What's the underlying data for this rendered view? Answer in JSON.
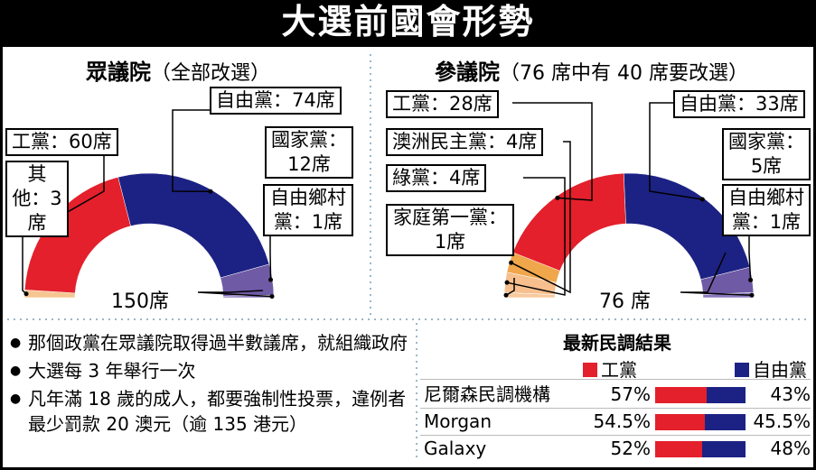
{
  "title": "大選前國會形勢",
  "colors": {
    "labor": "#e3202b",
    "liberal": "#1c2283",
    "national": "#6f5aa6",
    "country_liberal": "#8a78bf",
    "others": "#f6c692",
    "greens": "#f7bf8e",
    "pup": "#f0a64a",
    "family_first": "#f7c99e"
  },
  "chart_data": [
    {
      "type": "pie",
      "subtype": "half-donut",
      "title": "眾議院",
      "subtitle": "（全部改選）",
      "total_label": "150席",
      "total": 150,
      "series": [
        {
          "name": "其他",
          "value": 3,
          "label": "其他：3席",
          "color": "#f6c692"
        },
        {
          "name": "工黨",
          "value": 60,
          "label": "工黨：60席",
          "color": "#e3202b"
        },
        {
          "name": "自由黨",
          "value": 74,
          "label": "自由黨：74席",
          "color": "#1c2283"
        },
        {
          "name": "國家黨",
          "value": 12,
          "label": "國家黨：12席",
          "color": "#6f5aa6"
        },
        {
          "name": "自由鄉村黨",
          "value": 1,
          "label": "自由鄉村黨：1席",
          "color": "#8a78bf"
        }
      ]
    },
    {
      "type": "pie",
      "subtype": "half-donut",
      "title": "參議院",
      "subtitle": "（76 席中有 40 席要改選）",
      "total_label": "76 席",
      "total": 76,
      "series": [
        {
          "name": "家庭第一黨",
          "value": 1,
          "label": "家庭第一黨：1席",
          "color": "#f7c99e"
        },
        {
          "name": "綠黨",
          "value": 4,
          "label": "綠黨：4席",
          "color": "#f7bf8e"
        },
        {
          "name": "澳洲民主黨",
          "value": 4,
          "label": "澳洲民主黨：4席",
          "color": "#f0a64a"
        },
        {
          "name": "工黨",
          "value": 28,
          "label": "工黨：28席",
          "color": "#e3202b"
        },
        {
          "name": "自由黨",
          "value": 33,
          "label": "自由黨：33席",
          "color": "#1c2283"
        },
        {
          "name": "國家黨",
          "value": 5,
          "label": "國家黨：5席",
          "color": "#6f5aa6"
        },
        {
          "name": "自由鄉村黨",
          "value": 1,
          "label": "自由鄉村黨：1席",
          "color": "#8a78bf"
        }
      ]
    },
    {
      "type": "bar",
      "subtype": "stacked-100",
      "title": "最新民調結果",
      "categories": [
        "尼爾森民調機構",
        "Morgan",
        "Galaxy"
      ],
      "series": [
        {
          "name": "工黨",
          "values": [
            57,
            54.5,
            52
          ],
          "labels": [
            "57%",
            "54.5%",
            "52%"
          ],
          "color": "#e3202b"
        },
        {
          "name": "自由黨",
          "values": [
            43,
            45.5,
            48
          ],
          "labels": [
            "43%",
            "45.5%",
            "48%"
          ],
          "color": "#1c2283"
        }
      ]
    }
  ],
  "house": {
    "title": "眾議院",
    "subtitle": "（全部改選）",
    "total": "150席",
    "labels": {
      "liberal": "自由黨：74席",
      "labor": "工黨：60席",
      "others": "其他：3席",
      "national": "國家黨：12席",
      "clp": "自由鄉村黨：1席"
    }
  },
  "senate": {
    "title": "參議院",
    "subtitle": "（76 席中有 40 席要改選）",
    "total": "76 席",
    "labels": {
      "labor": "工黨：28席",
      "democrats": "澳洲民主黨：4席",
      "greens": "綠黨：4席",
      "family_first": "家庭第一黨：1席",
      "liberal": "自由黨：33席",
      "national": "國家黨：5席",
      "clp": "自由鄉村黨：1席"
    }
  },
  "notes": [
    "那個政黨在眾議院取得過半數議席，就組織政府",
    "大選每 3 年舉行一次",
    "凡年滿 18 歲的成人，都要強制性投票，違例者最少罰款 20 澳元（逾 135 港元）"
  ],
  "poll": {
    "title": "最新民調結果",
    "legend_labor": "工黨",
    "legend_liberal": "自由黨",
    "rows": [
      {
        "name": "尼爾森民調機構",
        "labor": "57%",
        "liberal": "43%"
      },
      {
        "name": "Morgan",
        "labor": "54.5%",
        "liberal": "45.5%"
      },
      {
        "name": "Galaxy",
        "labor": "52%",
        "liberal": "48%"
      }
    ]
  }
}
